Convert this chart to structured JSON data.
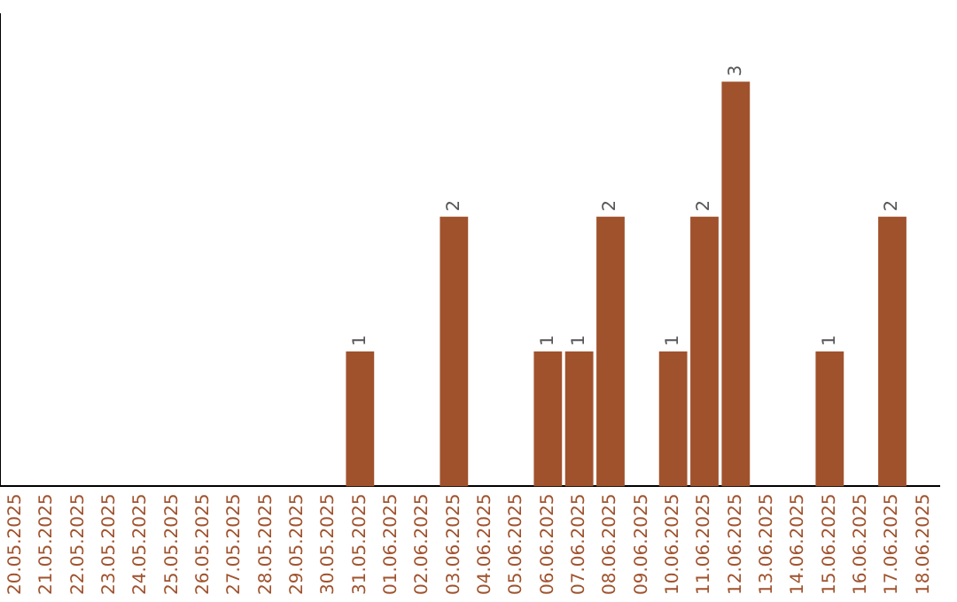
{
  "chart_data": {
    "type": "bar",
    "categories": [
      "20.05.2025",
      "21.05.2025",
      "22.05.2025",
      "23.05.2025",
      "24.05.2025",
      "25.05.2025",
      "26.05.2025",
      "27.05.2025",
      "28.05.2025",
      "29.05.2025",
      "30.05.2025",
      "31.05.2025",
      "01.06.2025",
      "02.06.2025",
      "03.06.2025",
      "04.06.2025",
      "05.06.2025",
      "06.06.2025",
      "07.06.2025",
      "08.06.2025",
      "09.06.2025",
      "10.06.2025",
      "11.06.2025",
      "12.06.2025",
      "13.06.2025",
      "14.06.2025",
      "15.06.2025",
      "16.06.2025",
      "17.06.2025",
      "18.06.2025"
    ],
    "values": [
      0,
      0,
      0,
      0,
      0,
      0,
      0,
      0,
      0,
      0,
      0,
      1,
      0,
      0,
      2,
      0,
      0,
      1,
      1,
      2,
      0,
      1,
      2,
      3,
      0,
      0,
      1,
      0,
      2,
      0
    ],
    "value_labels": [
      null,
      null,
      null,
      null,
      null,
      null,
      null,
      null,
      null,
      null,
      null,
      "1",
      null,
      null,
      "2",
      null,
      null,
      "1",
      "1",
      "2",
      null,
      "1",
      "2",
      "3",
      null,
      null,
      "1",
      null,
      "2",
      null
    ],
    "color": "#a0522d",
    "grid": false,
    "legend": false,
    "tick_labels": "x"
  }
}
